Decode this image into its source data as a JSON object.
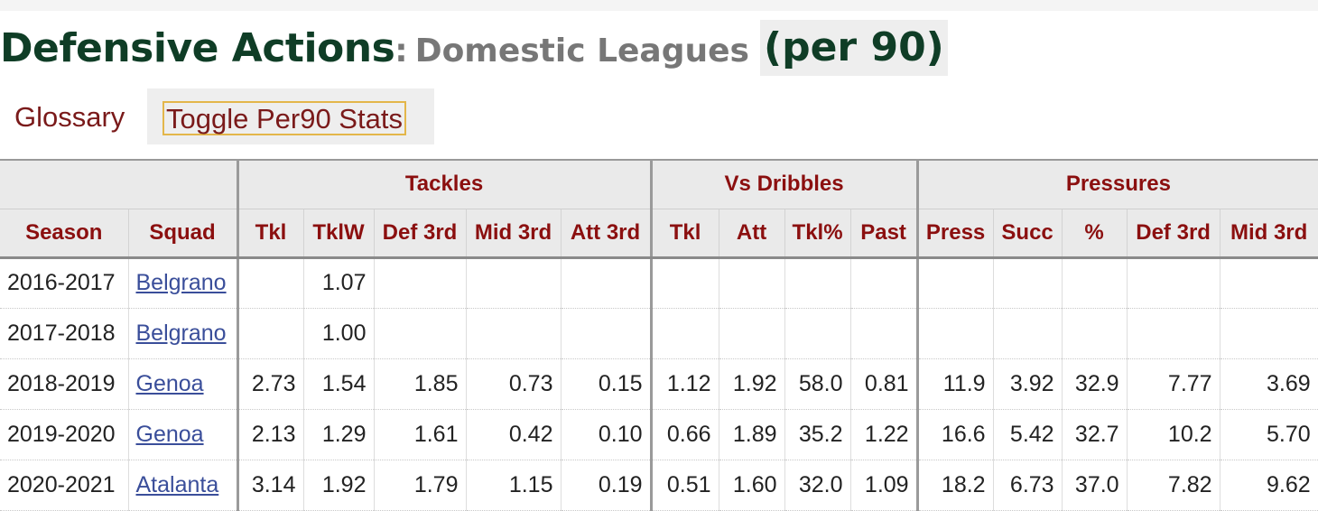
{
  "title": {
    "main": "Defensive Actions",
    "colon": ":",
    "sub": "Domestic Leagues",
    "per": "(per 90)"
  },
  "links": {
    "glossary": "Glossary",
    "toggle": "Toggle Per90 Stats"
  },
  "table": {
    "groups": [
      "",
      "Tackles",
      "Vs Dribbles",
      "Pressures"
    ],
    "columns": [
      "Season",
      "Squad",
      "Tkl",
      "TklW",
      "Def 3rd",
      "Mid 3rd",
      "Att 3rd",
      "Tkl",
      "Att",
      "Tkl%",
      "Past",
      "Press",
      "Succ",
      "%",
      "Def 3rd",
      "Mid 3rd"
    ],
    "rows": [
      [
        "2016-2017",
        "Belgrano",
        "",
        "1.07",
        "",
        "",
        "",
        "",
        "",
        "",
        "",
        "",
        "",
        "",
        "",
        ""
      ],
      [
        "2017-2018",
        "Belgrano",
        "",
        "1.00",
        "",
        "",
        "",
        "",
        "",
        "",
        "",
        "",
        "",
        "",
        "",
        ""
      ],
      [
        "2018-2019",
        "Genoa",
        "2.73",
        "1.54",
        "1.85",
        "0.73",
        "0.15",
        "1.12",
        "1.92",
        "58.0",
        "0.81",
        "11.9",
        "3.92",
        "32.9",
        "7.77",
        "3.69"
      ],
      [
        "2019-2020",
        "Genoa",
        "2.13",
        "1.29",
        "1.61",
        "0.42",
        "0.10",
        "0.66",
        "1.89",
        "35.2",
        "1.22",
        "16.6",
        "5.42",
        "32.7",
        "10.2",
        "5.70"
      ],
      [
        "2020-2021",
        "Atalanta",
        "3.14",
        "1.92",
        "1.79",
        "1.15",
        "0.19",
        "0.51",
        "1.60",
        "32.0",
        "1.09",
        "18.2",
        "6.73",
        "37.0",
        "7.82",
        "9.62"
      ]
    ]
  }
}
